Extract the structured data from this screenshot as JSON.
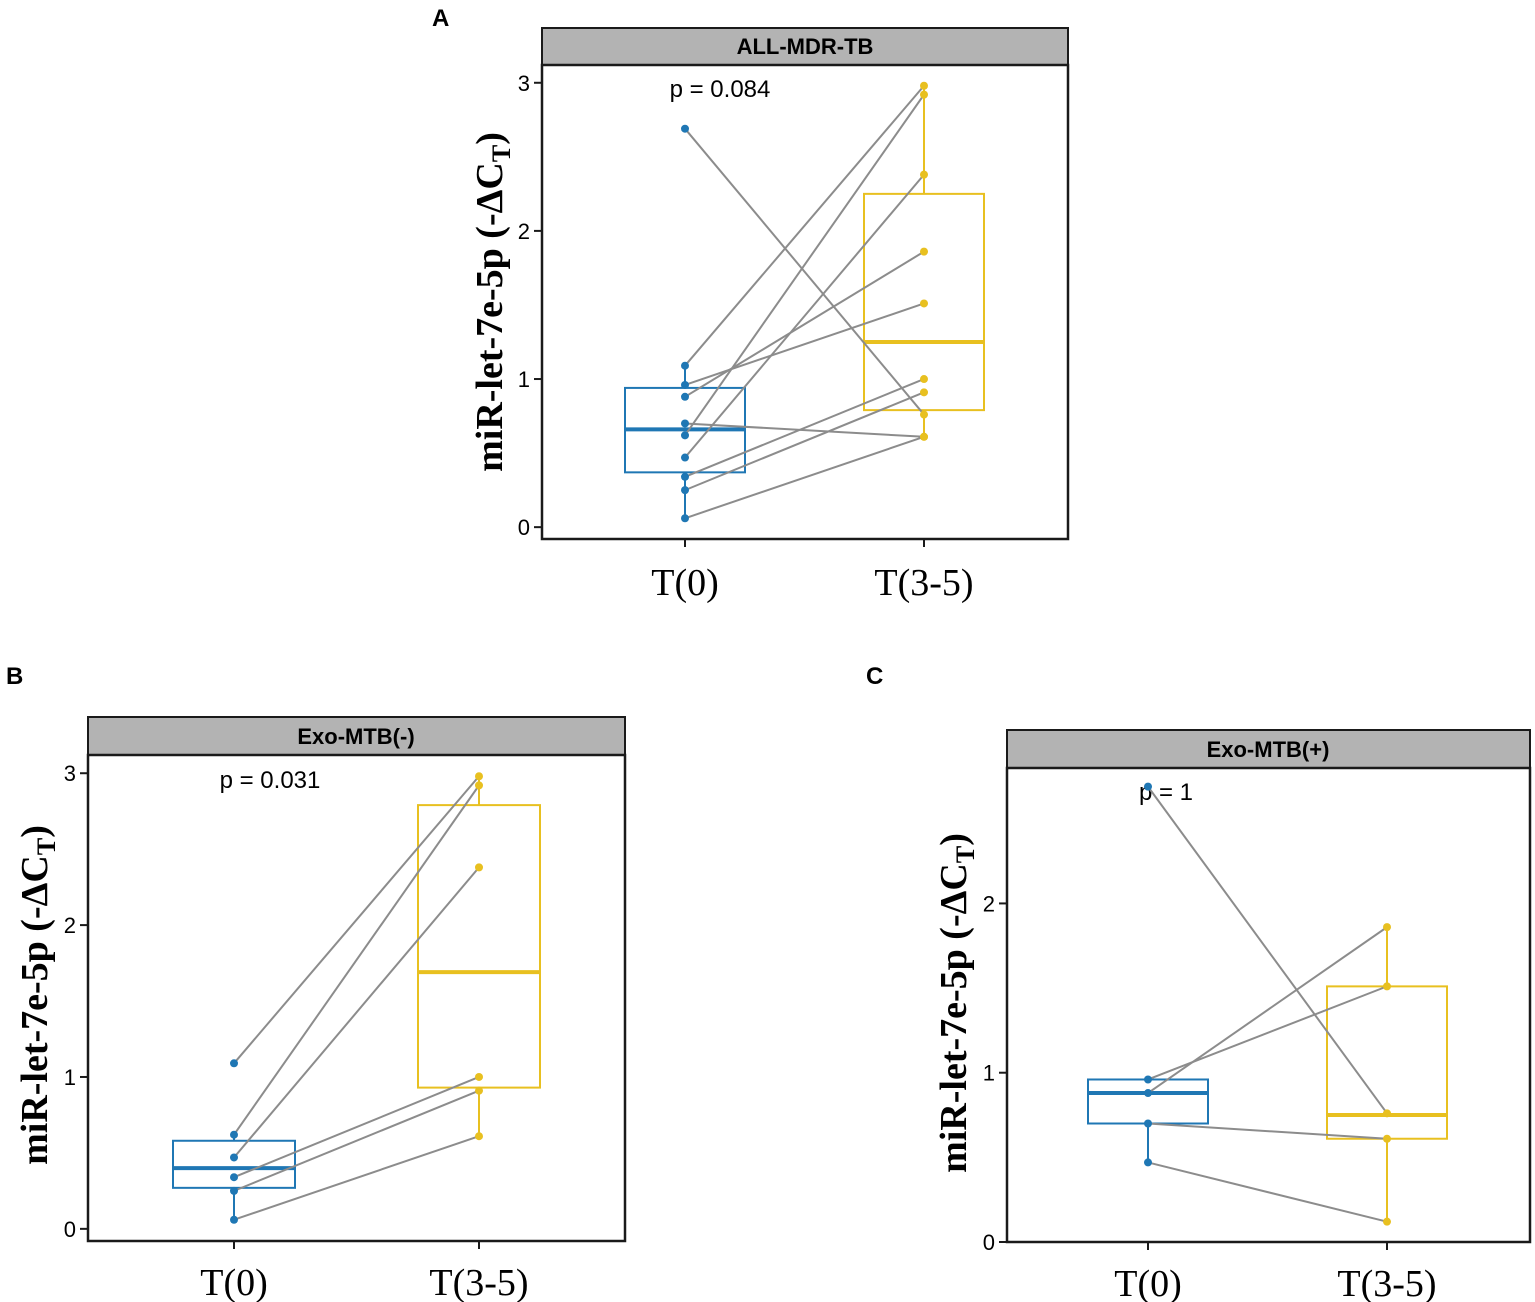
{
  "chart_data": [
    {
      "type": "box",
      "panel_label": "A",
      "title": "ALL-MDR-TB",
      "annotation": "p = 0.084",
      "ylabel": "miR-let-7e-5p (-ΔC",
      "ylabel_sub": "T",
      "ylabel_close": ")",
      "categories": [
        "T(0)",
        "T(3-5)"
      ],
      "yticks": [
        0,
        1,
        2,
        3
      ],
      "ylim": [
        -0.08,
        3.12
      ],
      "colors": [
        "#1f77b4",
        "#e8c020"
      ],
      "line_color": "#8c8c8c",
      "boxes": [
        {
          "q1": 0.37,
          "median": 0.66,
          "q3": 0.94,
          "whisker_low": 0.06,
          "whisker_high": 1.09
        },
        {
          "q1": 0.79,
          "median": 1.25,
          "q3": 2.25,
          "whisker_low": 0.61,
          "whisker_high": 2.98
        }
      ],
      "pairs": [
        [
          2.69,
          0.76
        ],
        [
          1.09,
          2.98
        ],
        [
          0.96,
          1.51
        ],
        [
          0.88,
          1.86
        ],
        [
          0.7,
          0.61
        ],
        [
          0.62,
          2.92
        ],
        [
          0.47,
          2.38
        ],
        [
          0.34,
          1.0
        ],
        [
          0.25,
          0.91
        ],
        [
          0.06,
          0.61
        ]
      ]
    },
    {
      "type": "box",
      "panel_label": "B",
      "title": "Exo-MTB(-)",
      "annotation": "p = 0.031",
      "ylabel": "miR-let-7e-5p (-ΔC",
      "ylabel_sub": "T",
      "ylabel_close": ")",
      "categories": [
        "T(0)",
        "T(3-5)"
      ],
      "yticks": [
        0,
        1,
        2,
        3
      ],
      "ylim": [
        -0.08,
        3.12
      ],
      "colors": [
        "#1f77b4",
        "#e8c020"
      ],
      "line_color": "#8c8c8c",
      "boxes": [
        {
          "q1": 0.27,
          "median": 0.4,
          "q3": 0.58,
          "whisker_low": 0.06,
          "whisker_high": 0.62
        },
        {
          "q1": 0.93,
          "median": 1.69,
          "q3": 2.79,
          "whisker_low": 0.61,
          "whisker_high": 2.98
        }
      ],
      "pairs": [
        [
          1.09,
          2.98
        ],
        [
          0.62,
          2.92
        ],
        [
          0.47,
          2.38
        ],
        [
          0.34,
          1.0
        ],
        [
          0.25,
          0.91
        ],
        [
          0.06,
          0.61
        ]
      ]
    },
    {
      "type": "box",
      "panel_label": "C",
      "title": "Exo-MTB(+)",
      "annotation": "p = 1",
      "ylabel": "miR-let-7e-5p (-ΔC",
      "ylabel_sub": "T",
      "ylabel_close": ")",
      "categories": [
        "T(0)",
        "T(3-5)"
      ],
      "yticks": [
        0,
        1,
        2
      ],
      "ylim": [
        0.0,
        2.8
      ],
      "colors": [
        "#1f77b4",
        "#e8c020"
      ],
      "line_color": "#8c8c8c",
      "boxes": [
        {
          "q1": 0.7,
          "median": 0.88,
          "q3": 0.96,
          "whisker_low": 0.47,
          "whisker_high": 0.96
        },
        {
          "q1": 0.61,
          "median": 0.75,
          "q3": 1.51,
          "whisker_low": 0.12,
          "whisker_high": 1.86
        }
      ],
      "pairs": [
        [
          2.69,
          0.76
        ],
        [
          0.96,
          1.51
        ],
        [
          0.88,
          1.86
        ],
        [
          0.7,
          0.61
        ],
        [
          0.47,
          0.12
        ]
      ]
    }
  ]
}
